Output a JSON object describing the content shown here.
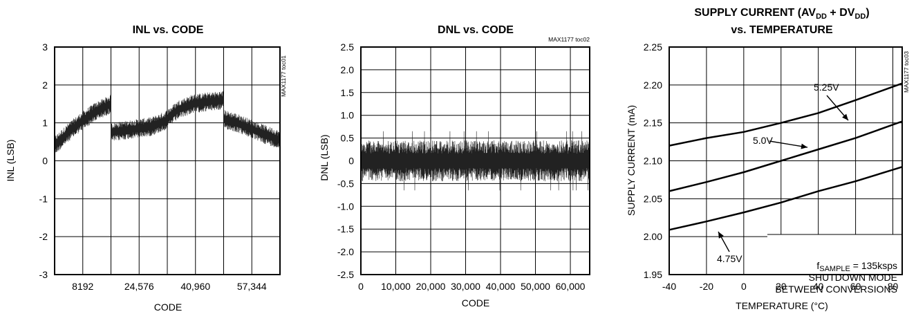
{
  "chart_data": [
    {
      "type": "line",
      "title": "INL vs. CODE",
      "xlabel": "CODE",
      "ylabel": "INL (LSB)",
      "xlim": [
        0,
        65536
      ],
      "ylim": [
        -3,
        3
      ],
      "x_ticks": [
        8192,
        24576,
        40960,
        57344
      ],
      "x_tick_labels": [
        "8192",
        "24,576",
        "40,960",
        "57,344"
      ],
      "x_grid": [
        0,
        8192,
        16384,
        24576,
        32768,
        40960,
        49152,
        57344,
        65536
      ],
      "y_ticks": [
        -3,
        -2,
        -1,
        0,
        1,
        2,
        3
      ],
      "y_tick_labels": [
        "-3",
        "-2",
        "-1",
        "0",
        "1",
        "2",
        "3"
      ],
      "grid": true,
      "doc_code": "MAX1177 toc01",
      "series": [
        {
          "x": [
            0,
            4000,
            8000,
            12000,
            16383,
            16384,
            20000,
            24000,
            28000,
            32000,
            36000,
            40000,
            44000,
            49151,
            49152,
            53000,
            57000,
            61000,
            65535
          ],
          "values": [
            0.4,
            0.75,
            1.05,
            1.3,
            1.5,
            0.75,
            0.8,
            0.85,
            0.9,
            1.05,
            1.35,
            1.5,
            1.55,
            1.6,
            1.1,
            1.0,
            0.85,
            0.7,
            0.55
          ],
          "noise_band": 0.25
        }
      ]
    },
    {
      "type": "line",
      "title": "DNL vs. CODE",
      "xlabel": "CODE",
      "ylabel": "DNL (LSB)",
      "xlim": [
        0,
        65536
      ],
      "ylim": [
        -2.5,
        2.5
      ],
      "x_ticks": [
        0,
        10000,
        20000,
        30000,
        40000,
        50000,
        60000
      ],
      "x_tick_labels": [
        "0",
        "10,000",
        "20,000",
        "30,000",
        "40,000",
        "50,000",
        "60,000"
      ],
      "x_grid": [
        0,
        10000,
        20000,
        30000,
        40000,
        50000,
        60000
      ],
      "y_ticks": [
        -2.5,
        -2.0,
        -1.5,
        -1.0,
        -0.5,
        0,
        0.5,
        1.0,
        1.5,
        2.0,
        2.5
      ],
      "y_tick_labels": [
        "-2.5",
        "-2.0",
        "-1.5",
        "-1.0",
        "-0.5",
        "0",
        "0.5",
        "1.0",
        "1.5",
        "2.0",
        "2.5"
      ],
      "grid": true,
      "doc_code": "MAX1177 toc02",
      "series": [
        {
          "x": [
            0,
            65535
          ],
          "values": [
            0,
            0
          ],
          "noise_band": 0.45,
          "peak": 0.65
        }
      ]
    },
    {
      "type": "line",
      "title": "SUPPLY CURRENT (AVDD + DVDD)",
      "title_line2": "vs. TEMPERATURE",
      "xlabel": "TEMPERATURE (°C)",
      "ylabel": "SUPPLY CURRENT (mA)",
      "xlim": [
        -40,
        85
      ],
      "ylim": [
        1.95,
        2.25
      ],
      "x_ticks": [
        -40,
        -20,
        0,
        20,
        40,
        60,
        80
      ],
      "x_tick_labels": [
        "-40",
        "-20",
        "0",
        "20",
        "40",
        "60",
        "80"
      ],
      "x_grid": [
        -40,
        -20,
        0,
        20,
        40,
        60,
        80
      ],
      "y_ticks": [
        1.95,
        2.0,
        2.05,
        2.1,
        2.15,
        2.2,
        2.25
      ],
      "y_tick_labels": [
        "1.95",
        "2.00",
        "2.05",
        "2.10",
        "2.15",
        "2.20",
        "2.25"
      ],
      "grid": true,
      "doc_code": "MAX1177 toc03",
      "annotation_lines": [
        "fSAMPLE = 135ksps",
        "SHUTDOWN MODE",
        "BETWEEN CONVERSIONS"
      ],
      "series": [
        {
          "name": "5.25V",
          "x": [
            -40,
            -20,
            0,
            20,
            40,
            60,
            85
          ],
          "values": [
            2.12,
            2.13,
            2.138,
            2.15,
            2.163,
            2.18,
            2.202
          ]
        },
        {
          "name": "5.0V",
          "x": [
            -40,
            -20,
            0,
            20,
            40,
            60,
            85
          ],
          "values": [
            2.06,
            2.072,
            2.085,
            2.1,
            2.115,
            2.13,
            2.152
          ]
        },
        {
          "name": "4.75V",
          "x": [
            -40,
            -20,
            0,
            20,
            40,
            60,
            85
          ],
          "values": [
            2.009,
            2.02,
            2.032,
            2.045,
            2.06,
            2.073,
            2.092
          ]
        }
      ]
    }
  ]
}
